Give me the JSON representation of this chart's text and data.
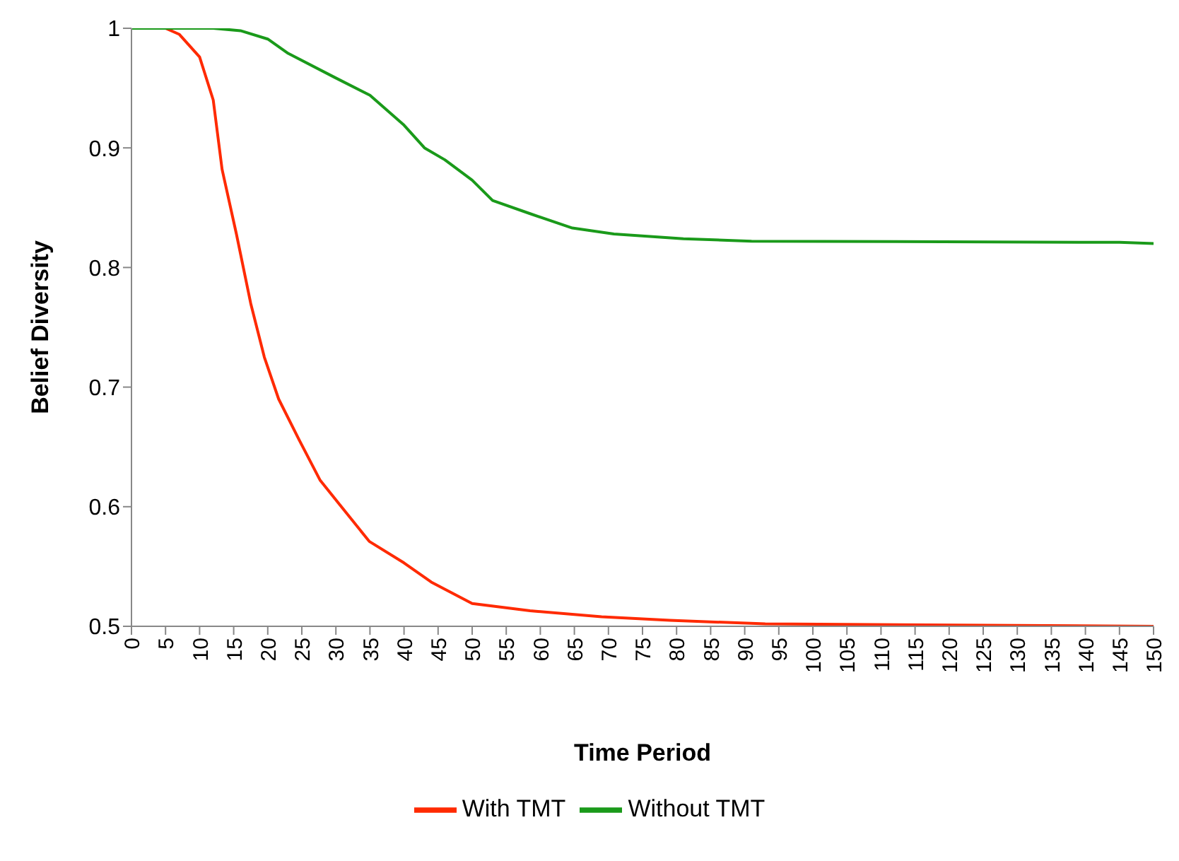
{
  "chart_data": {
    "type": "line",
    "xlabel": "Time Period",
    "ylabel": "Belief Diversity",
    "xlim": [
      0,
      150
    ],
    "ylim": [
      0.5,
      1
    ],
    "xticks": [
      0,
      5,
      10,
      15,
      20,
      25,
      30,
      35,
      40,
      45,
      50,
      55,
      60,
      65,
      70,
      75,
      80,
      85,
      90,
      95,
      100,
      105,
      110,
      115,
      120,
      125,
      130,
      135,
      140,
      145,
      150
    ],
    "yticks": [
      0.5,
      0.6,
      0.7,
      0.8,
      0.9,
      1
    ],
    "grid": false,
    "legend": "bottom",
    "marker": "none",
    "line_style": "solid",
    "series": [
      {
        "name": "With TMT",
        "color": "#ff2a00",
        "x": [
          0,
          5,
          7,
          10,
          12,
          13.3,
          15.4,
          17.5,
          19.5,
          21.6,
          24.6,
          27.7,
          30.8,
          34.9,
          40,
          44,
          50,
          58.5,
          69,
          79,
          93,
          150
        ],
        "values": [
          1,
          1,
          0.995,
          0.976,
          0.94,
          0.882,
          0.828,
          0.77,
          0.725,
          0.69,
          0.656,
          0.622,
          0.6,
          0.571,
          0.553,
          0.537,
          0.519,
          0.513,
          0.508,
          0.505,
          0.502,
          0.5
        ]
      },
      {
        "name": "Without TMT",
        "color": "#1a9a1a",
        "x": [
          0,
          12,
          16,
          20,
          23,
          29.8,
          35,
          40,
          43,
          46,
          50,
          53,
          58.5,
          64.7,
          70.8,
          81,
          91,
          145,
          150
        ],
        "values": [
          1,
          1,
          0.998,
          0.991,
          0.979,
          0.959,
          0.944,
          0.919,
          0.9,
          0.89,
          0.873,
          0.856,
          0.845,
          0.833,
          0.828,
          0.824,
          0.822,
          0.821,
          0.82
        ]
      }
    ]
  }
}
